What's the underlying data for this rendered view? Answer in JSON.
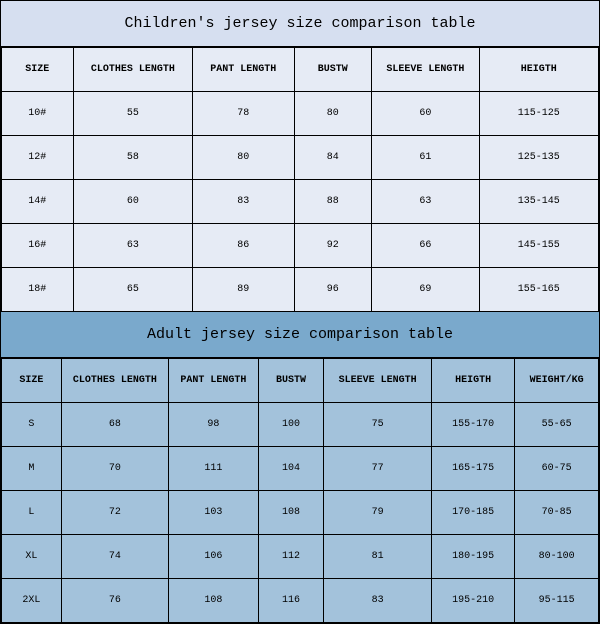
{
  "children": {
    "title": "Children's jersey size comparison table",
    "columns": [
      "SIZE",
      "CLOTHES LENGTH",
      "PANT LENGTH",
      "BUSTW",
      "SLEEVE LENGTH",
      "HEIGTH"
    ],
    "col_widths": [
      "12%",
      "20%",
      "17%",
      "13%",
      "18%",
      "20%"
    ],
    "rows": [
      [
        "10#",
        "55",
        "78",
        "80",
        "60",
        "115-125"
      ],
      [
        "12#",
        "58",
        "80",
        "84",
        "61",
        "125-135"
      ],
      [
        "14#",
        "60",
        "83",
        "88",
        "63",
        "135-145"
      ],
      [
        "16#",
        "63",
        "86",
        "92",
        "66",
        "145-155"
      ],
      [
        "18#",
        "65",
        "89",
        "96",
        "69",
        "155-165"
      ]
    ],
    "title_bg": "#d6dff0",
    "cell_bg": "#e6ebf5"
  },
  "adult": {
    "title": "Adult jersey size comparison table",
    "columns": [
      "SIZE",
      "CLOTHES LENGTH",
      "PANT LENGTH",
      "BUSTW",
      "SLEEVE LENGTH",
      "HEIGTH",
      "WEIGHT/KG"
    ],
    "col_widths": [
      "10%",
      "18%",
      "15%",
      "11%",
      "18%",
      "14%",
      "14%"
    ],
    "rows": [
      [
        "S",
        "68",
        "98",
        "100",
        "75",
        "155-170",
        "55-65"
      ],
      [
        "M",
        "70",
        "111",
        "104",
        "77",
        "165-175",
        "60-75"
      ],
      [
        "L",
        "72",
        "103",
        "108",
        "79",
        "170-185",
        "70-85"
      ],
      [
        "XL",
        "74",
        "106",
        "112",
        "81",
        "180-195",
        "80-100"
      ],
      [
        "2XL",
        "76",
        "108",
        "116",
        "83",
        "195-210",
        "95-115"
      ]
    ],
    "title_bg": "#7aa9cc",
    "cell_bg": "#a3c2db"
  },
  "border_color": "#000000",
  "font_family": "Courier New",
  "title_fontsize": 15,
  "cell_fontsize": 10
}
